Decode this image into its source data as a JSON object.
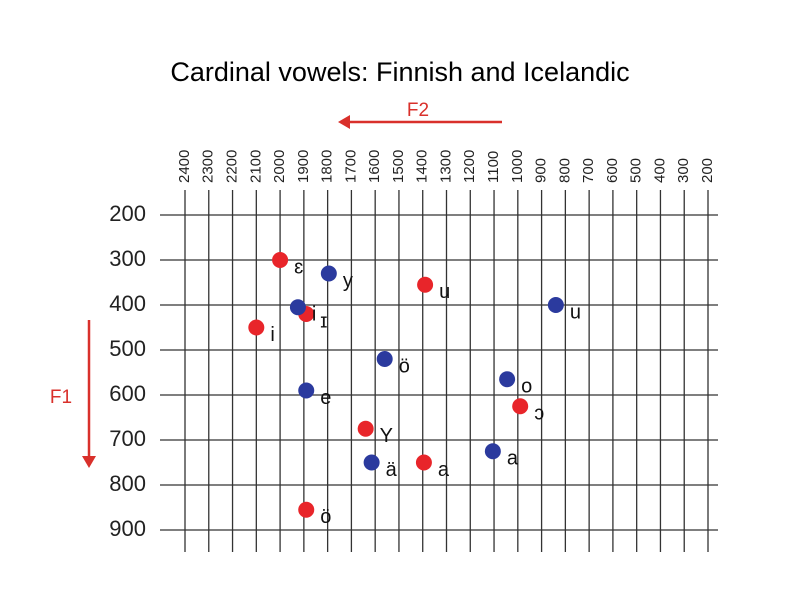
{
  "chart_data": {
    "type": "scatter",
    "title": "Cardinal vowels: Finnish and Icelandic",
    "x_label": "F2",
    "y_label": "F1",
    "xlim": [
      2400,
      200
    ],
    "ylim": [
      200,
      900
    ],
    "xticks": [
      2400,
      2300,
      2200,
      2100,
      2000,
      1900,
      1800,
      1700,
      1600,
      1500,
      1400,
      1300,
      1200,
      1100,
      1000,
      900,
      800,
      700,
      600,
      500,
      400,
      300,
      200
    ],
    "yticks": [
      200,
      300,
      400,
      500,
      600,
      700,
      800,
      900
    ],
    "grid": true,
    "series": [
      {
        "color": "#e8252a",
        "x": [
          2000,
          2100,
          1890,
          1390,
          1640,
          1395,
          990,
          1890
        ],
        "values": [
          300,
          450,
          420,
          355,
          675,
          750,
          625,
          855
        ],
        "labels": [
          "ɛ",
          "i",
          "ɪ",
          "u",
          "Y",
          "a",
          "ɔ",
          "ö"
        ]
      },
      {
        "color": "#2b3a9e",
        "x": [
          1795,
          1925,
          1560,
          1890,
          1615,
          1045,
          1105,
          840
        ],
        "values": [
          330,
          405,
          520,
          590,
          750,
          565,
          725,
          400
        ],
        "labels": [
          "y",
          "i",
          "ö",
          "e",
          "ä",
          "o",
          "a",
          "u"
        ]
      }
    ]
  }
}
